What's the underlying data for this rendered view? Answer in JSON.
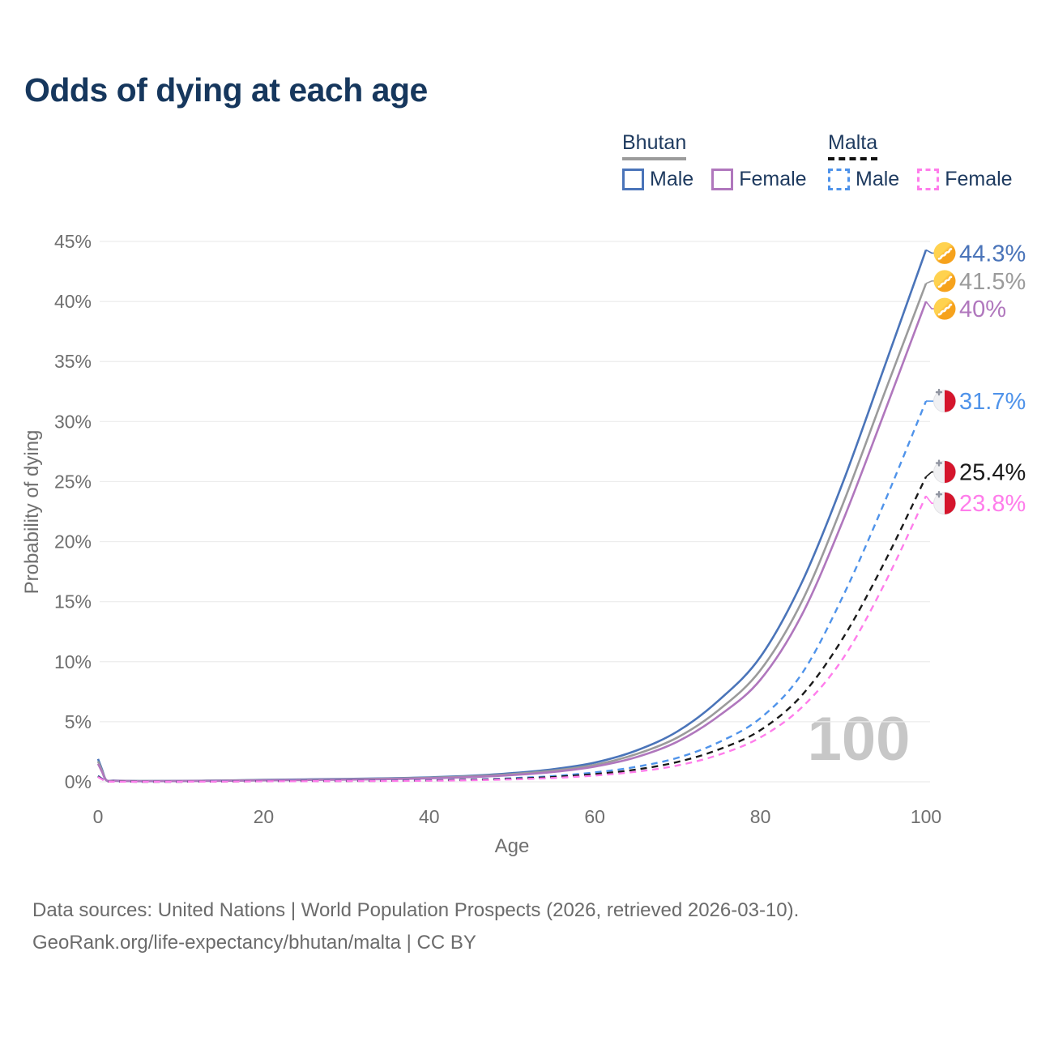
{
  "title": "Odds of dying at each age",
  "legend": {
    "groups": [
      {
        "name": "Bhutan",
        "line_style": "solid",
        "line_color": "#9b9b9b",
        "items": [
          {
            "label": "Male",
            "color": "#4a74b9"
          },
          {
            "label": "Female",
            "color": "#b077bd"
          }
        ]
      },
      {
        "name": "Malta",
        "line_style": "dashed",
        "line_color": "#111111",
        "items": [
          {
            "label": "Male",
            "color": "#4f93ea"
          },
          {
            "label": "Female",
            "color": "#ff7deb"
          }
        ]
      }
    ]
  },
  "chart_data": {
    "type": "line",
    "title": "Odds of dying at each age",
    "xlabel": "Age",
    "ylabel": "Probability of dying",
    "xlim": [
      0,
      100
    ],
    "ylim": [
      0,
      45
    ],
    "xticks": [
      "0",
      "20",
      "40",
      "60",
      "80",
      "100"
    ],
    "yticks": [
      "0%",
      "5%",
      "10%",
      "15%",
      "20%",
      "25%",
      "30%",
      "35%",
      "40%",
      "45%"
    ],
    "grid": "horizontal",
    "legend_position": "top-right",
    "watermark": "100",
    "series": [
      {
        "id": "bhutan-male",
        "name": "Bhutan Male",
        "color": "#4a74b9",
        "dash": false,
        "end_label": "44.3%",
        "flag": "bhutan",
        "flag_icon": "bhutan-flag-icon",
        "points": [
          [
            0,
            1.9
          ],
          [
            0.5,
            1.0
          ],
          [
            1,
            0.14
          ],
          [
            2,
            0.1
          ],
          [
            5,
            0.07
          ],
          [
            10,
            0.08
          ],
          [
            15,
            0.11
          ],
          [
            20,
            0.16
          ],
          [
            25,
            0.2
          ],
          [
            30,
            0.24
          ],
          [
            35,
            0.29
          ],
          [
            40,
            0.37
          ],
          [
            45,
            0.5
          ],
          [
            50,
            0.72
          ],
          [
            55,
            1.05
          ],
          [
            60,
            1.6
          ],
          [
            65,
            2.6
          ],
          [
            70,
            4.2
          ],
          [
            75,
            6.8
          ],
          [
            80,
            10.4
          ],
          [
            85,
            16.6
          ],
          [
            90,
            25.0
          ],
          [
            95,
            34.6
          ],
          [
            100,
            44.3
          ]
        ]
      },
      {
        "id": "bhutan-both",
        "name": "Bhutan Both sexes",
        "color": "#9b9b9b",
        "dash": false,
        "end_label": "41.5%",
        "flag": "bhutan",
        "flag_icon": "bhutan-flag-icon",
        "points": [
          [
            0,
            1.7
          ],
          [
            0.5,
            0.9
          ],
          [
            1,
            0.13
          ],
          [
            2,
            0.09
          ],
          [
            5,
            0.06
          ],
          [
            10,
            0.07
          ],
          [
            15,
            0.1
          ],
          [
            20,
            0.14
          ],
          [
            25,
            0.17
          ],
          [
            30,
            0.21
          ],
          [
            35,
            0.26
          ],
          [
            40,
            0.33
          ],
          [
            45,
            0.45
          ],
          [
            50,
            0.64
          ],
          [
            55,
            0.93
          ],
          [
            60,
            1.42
          ],
          [
            65,
            2.3
          ],
          [
            70,
            3.7
          ],
          [
            75,
            6.0
          ],
          [
            80,
            9.3
          ],
          [
            85,
            15.0
          ],
          [
            90,
            23.2
          ],
          [
            95,
            32.4
          ],
          [
            100,
            41.5
          ]
        ]
      },
      {
        "id": "bhutan-female",
        "name": "Bhutan Female",
        "color": "#b077bd",
        "dash": false,
        "end_label": "40%",
        "flag": "bhutan",
        "flag_icon": "bhutan-flag-icon",
        "points": [
          [
            0,
            1.5
          ],
          [
            0.5,
            0.8
          ],
          [
            1,
            0.12
          ],
          [
            2,
            0.08
          ],
          [
            5,
            0.05
          ],
          [
            10,
            0.06
          ],
          [
            15,
            0.08
          ],
          [
            20,
            0.12
          ],
          [
            25,
            0.15
          ],
          [
            30,
            0.18
          ],
          [
            35,
            0.22
          ],
          [
            40,
            0.29
          ],
          [
            45,
            0.39
          ],
          [
            50,
            0.56
          ],
          [
            55,
            0.82
          ],
          [
            60,
            1.27
          ],
          [
            65,
            2.05
          ],
          [
            70,
            3.35
          ],
          [
            75,
            5.5
          ],
          [
            80,
            8.5
          ],
          [
            85,
            13.9
          ],
          [
            90,
            21.8
          ],
          [
            95,
            30.8
          ],
          [
            100,
            40.0
          ]
        ]
      },
      {
        "id": "malta-male",
        "name": "Malta Male",
        "color": "#4f93ea",
        "dash": true,
        "end_label": "31.7%",
        "flag": "malta",
        "flag_icon": "malta-flag-icon",
        "points": [
          [
            0,
            0.5
          ],
          [
            0.5,
            0.25
          ],
          [
            1,
            0.04
          ],
          [
            2,
            0.02
          ],
          [
            5,
            0.01
          ],
          [
            10,
            0.01
          ],
          [
            15,
            0.04
          ],
          [
            20,
            0.06
          ],
          [
            25,
            0.07
          ],
          [
            30,
            0.08
          ],
          [
            35,
            0.1
          ],
          [
            40,
            0.13
          ],
          [
            45,
            0.19
          ],
          [
            50,
            0.3
          ],
          [
            55,
            0.48
          ],
          [
            60,
            0.78
          ],
          [
            65,
            1.25
          ],
          [
            70,
            2.0
          ],
          [
            75,
            3.3
          ],
          [
            80,
            5.3
          ],
          [
            85,
            9.0
          ],
          [
            90,
            15.5
          ],
          [
            95,
            23.3
          ],
          [
            100,
            31.7
          ]
        ]
      },
      {
        "id": "malta-both",
        "name": "Malta Both sexes",
        "color": "#1a1a1a",
        "dash": true,
        "end_label": "25.4%",
        "flag": "malta",
        "flag_icon": "malta-flag-icon",
        "points": [
          [
            0,
            0.45
          ],
          [
            0.5,
            0.22
          ],
          [
            1,
            0.03
          ],
          [
            2,
            0.02
          ],
          [
            5,
            0.01
          ],
          [
            10,
            0.01
          ],
          [
            15,
            0.03
          ],
          [
            20,
            0.05
          ],
          [
            25,
            0.06
          ],
          [
            30,
            0.07
          ],
          [
            35,
            0.08
          ],
          [
            40,
            0.11
          ],
          [
            45,
            0.16
          ],
          [
            50,
            0.25
          ],
          [
            55,
            0.4
          ],
          [
            60,
            0.64
          ],
          [
            65,
            1.02
          ],
          [
            70,
            1.65
          ],
          [
            75,
            2.7
          ],
          [
            80,
            4.3
          ],
          [
            85,
            7.2
          ],
          [
            90,
            12.0
          ],
          [
            95,
            18.3
          ],
          [
            100,
            25.4
          ]
        ]
      },
      {
        "id": "malta-female",
        "name": "Malta Female",
        "color": "#ff7deb",
        "dash": true,
        "end_label": "23.8%",
        "flag": "malta",
        "flag_icon": "malta-flag-icon",
        "points": [
          [
            0,
            0.4
          ],
          [
            0.5,
            0.2
          ],
          [
            1,
            0.03
          ],
          [
            2,
            0.01
          ],
          [
            5,
            0.01
          ],
          [
            10,
            0.01
          ],
          [
            15,
            0.02
          ],
          [
            20,
            0.04
          ],
          [
            25,
            0.05
          ],
          [
            30,
            0.06
          ],
          [
            35,
            0.07
          ],
          [
            40,
            0.09
          ],
          [
            45,
            0.13
          ],
          [
            50,
            0.2
          ],
          [
            55,
            0.32
          ],
          [
            60,
            0.52
          ],
          [
            65,
            0.84
          ],
          [
            70,
            1.36
          ],
          [
            75,
            2.25
          ],
          [
            80,
            3.7
          ],
          [
            85,
            6.2
          ],
          [
            90,
            10.3
          ],
          [
            95,
            16.5
          ],
          [
            100,
            23.8
          ]
        ]
      }
    ],
    "flag_colors": {
      "bhutan_yellow": "#ffd24f",
      "bhutan_orange": "#f6a21c",
      "malta_white": "#f1f1f3",
      "malta_red": "#d5152c"
    }
  },
  "footer": {
    "line1": "Data sources: United Nations | World Population Prospects (2026, retrieved 2026-03-10).",
    "line2": "GeoRank.org/life-expectancy/bhutan/malta | CC BY"
  }
}
